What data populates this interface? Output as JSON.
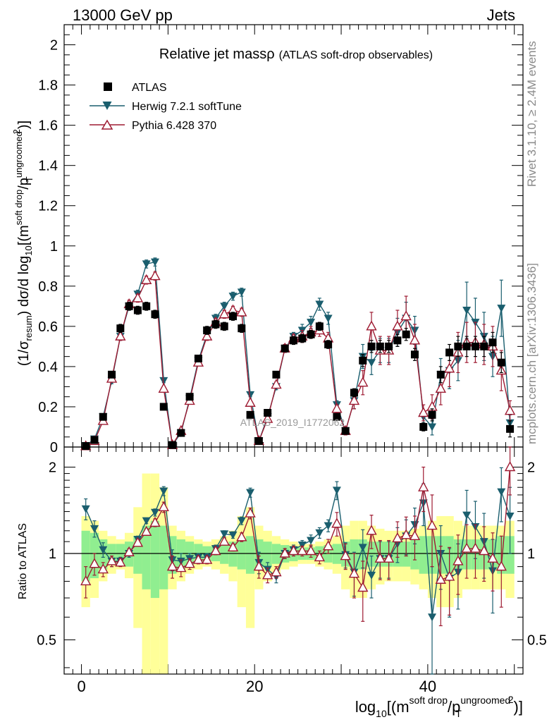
{
  "header": {
    "left": "13000 GeV pp",
    "right": "Jets"
  },
  "side": {
    "top": "Rivet 3.1.10, ≥ 2.4M events",
    "bottom": "mcplots.cern.ch [arXiv:1306.3436]"
  },
  "watermark": "ATLAS_2019_I1772062",
  "colors": {
    "atlas": "#000000",
    "herwig": "#1a5e6e",
    "pythia": "#9e1b32",
    "band_green": "#90ee90",
    "band_yellow": "#ffff99"
  },
  "chart_data": [
    {
      "type": "scatter",
      "title_main": "Relative jet mass",
      "title_rho": "ρ",
      "title_sub": "(ATLAS soft-drop observables)",
      "ylabel": "(1/σ_resum) dσ/d log10[(m^soft drop/p_T^ungroomed)^2]",
      "ylim": [
        0,
        2.1
      ],
      "xlim": [
        -2,
        51
      ],
      "yticks": [
        0,
        0.2,
        0.4,
        0.6,
        0.8,
        1,
        1.2,
        1.4,
        1.6,
        1.8,
        2
      ],
      "ytick_labels": [
        "0",
        "0.2",
        "0.4",
        "0.6",
        "0.8",
        "1",
        "1.2",
        "1.4",
        "1.6",
        "1.8",
        "2"
      ],
      "legend": [
        {
          "name": "ATLAS",
          "marker": "square"
        },
        {
          "name": "Herwig 7.2.1 softTune",
          "marker": "triangle-down"
        },
        {
          "name": "Pythia 6.428 370",
          "marker": "triangle-up-open"
        }
      ],
      "x": [
        0.5,
        1.5,
        2.5,
        3.5,
        4.5,
        5.5,
        6.5,
        7.5,
        8.5,
        9.5,
        10.5,
        11.5,
        12.5,
        13.5,
        14.5,
        15.5,
        16.5,
        17.5,
        18.5,
        19.5,
        20.5,
        21.5,
        22.5,
        23.5,
        24.5,
        25.5,
        26.5,
        27.5,
        28.5,
        29.5,
        30.5,
        31.5,
        32.5,
        33.5,
        34.5,
        35.5,
        36.5,
        37.5,
        38.5,
        39.5,
        40.5,
        41.5,
        42.5,
        43.5,
        44.5,
        45.5,
        46.5,
        47.5,
        48.5,
        49.5
      ],
      "series": [
        {
          "name": "ATLAS",
          "values": [
            0.005,
            0.035,
            0.15,
            0.36,
            0.59,
            0.7,
            0.68,
            0.7,
            0.66,
            0.2,
            0.01,
            0.07,
            0.25,
            0.44,
            0.58,
            0.61,
            0.6,
            0.65,
            0.59,
            0.16,
            0.03,
            0.17,
            0.36,
            0.49,
            0.53,
            0.54,
            0.56,
            0.6,
            0.51,
            0.15,
            0.08,
            0.27,
            0.43,
            0.5,
            0.5,
            0.5,
            0.53,
            0.56,
            0.46,
            0.1,
            0.16,
            0.36,
            0.47,
            0.5,
            0.5,
            0.5,
            0.5,
            0.52,
            0.42,
            0.09
          ],
          "errors": [
            0.004,
            0.005,
            0.01,
            0.015,
            0.02,
            0.02,
            0.02,
            0.02,
            0.02,
            0.01,
            0.003,
            0.005,
            0.01,
            0.015,
            0.02,
            0.02,
            0.02,
            0.02,
            0.02,
            0.01,
            0.003,
            0.01,
            0.015,
            0.015,
            0.02,
            0.02,
            0.02,
            0.02,
            0.02,
            0.01,
            0.01,
            0.02,
            0.03,
            0.03,
            0.03,
            0.03,
            0.03,
            0.03,
            0.03,
            0.02,
            0.03,
            0.04,
            0.04,
            0.05,
            0.05,
            0.05,
            0.05,
            0.05,
            0.05,
            0.04
          ]
        },
        {
          "name": "Herwig 7.2.1 softTune",
          "values": [
            0.007,
            0.04,
            0.15,
            0.33,
            0.55,
            0.7,
            0.76,
            0.91,
            0.92,
            0.33,
            0.01,
            0.07,
            0.24,
            0.43,
            0.56,
            0.64,
            0.7,
            0.75,
            0.77,
            0.26,
            0.03,
            0.15,
            0.3,
            0.49,
            0.55,
            0.58,
            0.62,
            0.71,
            0.64,
            0.21,
            0.08,
            0.23,
            0.45,
            0.42,
            0.48,
            0.48,
            0.57,
            0.64,
            0.58,
            0.15,
            0.1,
            0.36,
            0.38,
            0.43,
            0.68,
            0.62,
            0.55,
            0.45,
            0.69,
            0.12
          ],
          "errors": [
            0.004,
            0.006,
            0.01,
            0.015,
            0.02,
            0.02,
            0.02,
            0.02,
            0.02,
            0.01,
            0.003,
            0.005,
            0.01,
            0.015,
            0.02,
            0.02,
            0.02,
            0.02,
            0.02,
            0.01,
            0.003,
            0.01,
            0.015,
            0.02,
            0.02,
            0.03,
            0.03,
            0.03,
            0.03,
            0.02,
            0.02,
            0.04,
            0.06,
            0.06,
            0.06,
            0.06,
            0.07,
            0.08,
            0.07,
            0.03,
            0.04,
            0.08,
            0.09,
            0.1,
            0.14,
            0.12,
            0.12,
            0.1,
            0.14,
            0.04
          ]
        },
        {
          "name": "Pythia 6.428 370",
          "values": [
            0.004,
            0.03,
            0.13,
            0.34,
            0.55,
            0.71,
            0.74,
            0.83,
            0.85,
            0.29,
            0.01,
            0.08,
            0.23,
            0.42,
            0.55,
            0.62,
            0.66,
            0.68,
            0.67,
            0.22,
            0.03,
            0.14,
            0.31,
            0.49,
            0.54,
            0.55,
            0.57,
            0.58,
            0.54,
            0.19,
            0.08,
            0.23,
            0.32,
            0.6,
            0.48,
            0.48,
            0.6,
            0.65,
            0.53,
            0.17,
            0.2,
            0.29,
            0.39,
            0.47,
            0.52,
            0.52,
            0.51,
            0.5,
            0.38,
            0.18
          ],
          "errors": [
            0.004,
            0.006,
            0.01,
            0.015,
            0.02,
            0.02,
            0.02,
            0.02,
            0.02,
            0.01,
            0.003,
            0.005,
            0.01,
            0.015,
            0.02,
            0.02,
            0.02,
            0.02,
            0.02,
            0.01,
            0.003,
            0.01,
            0.015,
            0.02,
            0.02,
            0.03,
            0.03,
            0.03,
            0.03,
            0.02,
            0.02,
            0.04,
            0.06,
            0.07,
            0.07,
            0.07,
            0.08,
            0.1,
            0.08,
            0.04,
            0.06,
            0.08,
            0.09,
            0.1,
            0.1,
            0.1,
            0.1,
            0.1,
            0.1,
            0.05
          ]
        }
      ]
    },
    {
      "type": "scatter",
      "ylabel": "Ratio to ATLAS",
      "xlabel": "log10[(m^soft drop/p_T^ungroomed)^2]",
      "ylim": [
        0.38,
        2.35
      ],
      "ylog": true,
      "xlim": [
        -2,
        51
      ],
      "xticks": [
        0,
        20,
        40
      ],
      "xtick_labels": [
        "0",
        "20",
        "40"
      ],
      "yticks": [
        0.5,
        1,
        2
      ],
      "ytick_labels": [
        "0.5",
        "1",
        "2"
      ],
      "x": [
        0.5,
        1.5,
        2.5,
        3.5,
        4.5,
        5.5,
        6.5,
        7.5,
        8.5,
        9.5,
        10.5,
        11.5,
        12.5,
        13.5,
        14.5,
        15.5,
        16.5,
        17.5,
        18.5,
        19.5,
        20.5,
        21.5,
        22.5,
        23.5,
        24.5,
        25.5,
        26.5,
        27.5,
        28.5,
        29.5,
        30.5,
        31.5,
        32.5,
        33.5,
        34.5,
        35.5,
        36.5,
        37.5,
        38.5,
        39.5,
        40.5,
        41.5,
        42.5,
        43.5,
        44.5,
        45.5,
        46.5,
        47.5,
        48.5,
        49.5
      ],
      "band_green": [
        0.2,
        0.18,
        0.12,
        0.08,
        0.08,
        0.1,
        0.15,
        0.25,
        0.3,
        0.25,
        0.15,
        0.12,
        0.1,
        0.08,
        0.06,
        0.06,
        0.08,
        0.1,
        0.12,
        0.15,
        0.12,
        0.1,
        0.08,
        0.07,
        0.06,
        0.05,
        0.05,
        0.06,
        0.07,
        0.08,
        0.1,
        0.12,
        0.12,
        0.1,
        0.1,
        0.1,
        0.1,
        0.1,
        0.12,
        0.15,
        0.15,
        0.15,
        0.15,
        0.12,
        0.12,
        0.12,
        0.12,
        0.12,
        0.15,
        0.15
      ],
      "band_yellow": [
        0.35,
        0.3,
        0.2,
        0.15,
        0.12,
        0.18,
        0.45,
        0.9,
        0.9,
        0.7,
        0.25,
        0.2,
        0.15,
        0.12,
        0.1,
        0.12,
        0.15,
        0.2,
        0.35,
        0.45,
        0.25,
        0.2,
        0.15,
        0.12,
        0.1,
        0.08,
        0.08,
        0.1,
        0.12,
        0.15,
        0.25,
        0.3,
        0.3,
        0.25,
        0.22,
        0.2,
        0.2,
        0.2,
        0.22,
        0.25,
        0.3,
        0.35,
        0.35,
        0.3,
        0.25,
        0.25,
        0.25,
        0.25,
        0.25,
        0.3
      ],
      "series": [
        {
          "name": "Herwig 7.2.1 softTune",
          "values": [
            1.43,
            1.22,
            1.03,
            0.94,
            0.94,
            1.0,
            1.12,
            1.3,
            1.39,
            1.65,
            0.95,
            0.94,
            0.96,
            0.97,
            0.97,
            1.04,
            1.17,
            1.16,
            1.3,
            1.63,
            0.93,
            0.88,
            0.83,
            1.0,
            1.03,
            1.07,
            1.11,
            1.18,
            1.25,
            1.66,
            0.99,
            0.86,
            1.05,
            0.84,
            0.96,
            0.96,
            1.08,
            1.15,
            1.26,
            1.5,
            0.6,
            1.0,
            0.82,
            0.86,
            1.36,
            1.24,
            1.1,
            0.87,
            1.64,
            1.35
          ],
          "errors": [
            0.12,
            0.08,
            0.06,
            0.04,
            0.03,
            0.03,
            0.03,
            0.03,
            0.04,
            0.06,
            0.08,
            0.06,
            0.04,
            0.03,
            0.03,
            0.03,
            0.03,
            0.03,
            0.04,
            0.06,
            0.08,
            0.05,
            0.04,
            0.04,
            0.04,
            0.04,
            0.05,
            0.05,
            0.06,
            0.12,
            0.1,
            0.15,
            0.16,
            0.14,
            0.14,
            0.14,
            0.15,
            0.16,
            0.18,
            0.25,
            0.3,
            0.25,
            0.22,
            0.22,
            0.3,
            0.28,
            0.28,
            0.25,
            0.35,
            0.35
          ]
        },
        {
          "name": "Pythia 6.428 370",
          "values": [
            0.8,
            0.92,
            0.88,
            0.94,
            0.93,
            1.01,
            1.09,
            1.19,
            1.28,
            1.45,
            0.9,
            0.89,
            0.92,
            0.95,
            0.95,
            1.02,
            1.1,
            1.05,
            1.14,
            1.38,
            0.9,
            0.84,
            0.86,
            1.0,
            1.02,
            1.02,
            1.02,
            0.97,
            1.06,
            1.27,
            0.98,
            0.85,
            0.76,
            1.2,
            0.96,
            0.96,
            1.13,
            1.16,
            1.15,
            1.7,
            1.25,
            0.81,
            0.83,
            0.94,
            1.04,
            1.04,
            1.02,
            0.96,
            0.9,
            2.0
          ],
          "errors": [
            0.1,
            0.08,
            0.05,
            0.04,
            0.03,
            0.03,
            0.03,
            0.03,
            0.04,
            0.06,
            0.08,
            0.06,
            0.04,
            0.03,
            0.03,
            0.03,
            0.03,
            0.03,
            0.04,
            0.06,
            0.08,
            0.05,
            0.04,
            0.04,
            0.04,
            0.04,
            0.05,
            0.05,
            0.06,
            0.12,
            0.1,
            0.15,
            0.18,
            0.16,
            0.15,
            0.15,
            0.16,
            0.18,
            0.2,
            0.3,
            0.35,
            0.25,
            0.22,
            0.22,
            0.22,
            0.22,
            0.22,
            0.22,
            0.25,
            0.4
          ]
        }
      ]
    }
  ]
}
